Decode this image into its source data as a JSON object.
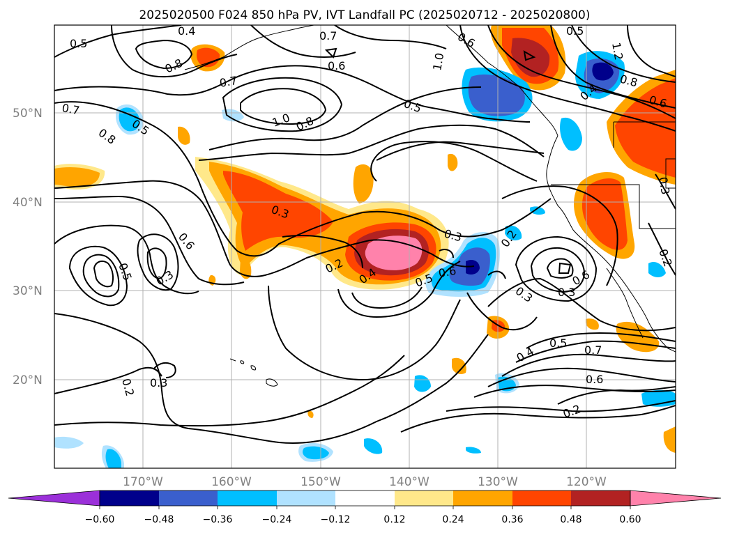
{
  "title": "2025020500 F024 850 hPa PV, IVT Landfall PC (2025020712 - 2025020800)",
  "lat_labels": [
    "50°N",
    "40°N",
    "30°N",
    "20°N"
  ],
  "lon_labels": [
    "170°W",
    "160°W",
    "150°W",
    "140°W",
    "130°W",
    "120°W"
  ],
  "contour_labels": [
    "0.5",
    "0.4",
    "0.7",
    "0.6",
    "0.8",
    "0.7",
    "1.0",
    "0.8",
    "0.5",
    "0.7",
    "0.5",
    "0.8",
    "0.3",
    "0.6",
    "0.3",
    "0.2",
    "0.4",
    "0.5",
    "0.6",
    "0.3",
    "0.2",
    "0.3",
    "0.3",
    "0.6",
    "0.5",
    "0.2",
    "0.3",
    "0.2",
    "0.4",
    "0.5",
    "0.7",
    "0.6",
    "0.2",
    "0.6",
    "1.0",
    "1.2",
    "0.8",
    "0.6",
    "0.4",
    "0.5",
    "0.3"
  ],
  "colorbar": {
    "ticks": [
      "−0.60",
      "−0.48",
      "−0.36",
      "−0.24",
      "−0.12",
      "0.12",
      "0.24",
      "0.36",
      "0.48",
      "0.60"
    ],
    "colors": [
      "#9b30d9",
      "#00008b",
      "#3a5fcd",
      "#00bfff",
      "#b0e2ff",
      "#ffffff",
      "#ffe88a",
      "#ffa500",
      "#ff4500",
      "#b22222",
      "#ff82ab"
    ]
  }
}
